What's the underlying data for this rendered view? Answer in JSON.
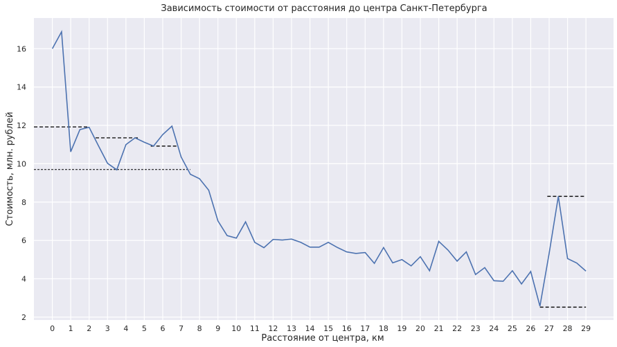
{
  "chart_data": {
    "type": "line",
    "title": "Зависимость стоимости от расстояния до центра Санкт-Петербурга",
    "xlabel": "Расстояние от центра, км",
    "ylabel": "Стоимость, млн. рублей",
    "xlim": [
      -1.0,
      30.5
    ],
    "ylim": [
      1.85,
      17.6
    ],
    "x_ticks": [
      0,
      1,
      2,
      3,
      4,
      5,
      6,
      7,
      8,
      9,
      10,
      11,
      12,
      13,
      14,
      15,
      16,
      17,
      18,
      19,
      20,
      21,
      22,
      23,
      24,
      25,
      26,
      27,
      28,
      29
    ],
    "y_ticks": [
      2,
      4,
      6,
      8,
      10,
      12,
      14,
      16
    ],
    "grid": true,
    "background": "#eaeaf2",
    "line_color": "#4c72b0",
    "series": [
      {
        "x": [
          0,
          0.5,
          1,
          1.5,
          2,
          2.5,
          3,
          3.5,
          4,
          4.5,
          5,
          5.5,
          6,
          6.5,
          7,
          7.5,
          8,
          8.5,
          9,
          9.5,
          10,
          10.5,
          11,
          11.5,
          12,
          12.5,
          13,
          13.5,
          14,
          14.5,
          15,
          15.5,
          16,
          16.5,
          17,
          17.5,
          18,
          18.5,
          19,
          19.5,
          20,
          20.5,
          21,
          21.5,
          22,
          22.5,
          23,
          23.5,
          24,
          24.5,
          25,
          25.5,
          26,
          26.5,
          27,
          27.5,
          28,
          28.5,
          29
        ],
        "values": [
          16.0,
          16.88,
          10.62,
          11.78,
          11.9,
          10.95,
          10.02,
          9.68,
          11.0,
          11.35,
          11.12,
          10.92,
          11.52,
          11.96,
          10.35,
          9.45,
          9.22,
          8.62,
          7.02,
          6.25,
          6.12,
          6.97,
          5.9,
          5.62,
          6.05,
          6.02,
          6.07,
          5.9,
          5.65,
          5.65,
          5.9,
          5.63,
          5.4,
          5.32,
          5.37,
          4.8,
          5.63,
          4.83,
          5.0,
          4.67,
          5.15,
          4.42,
          5.95,
          5.5,
          4.92,
          5.4,
          4.22,
          4.58,
          3.9,
          3.87,
          4.42,
          3.73,
          4.38,
          2.57,
          5.32,
          8.3,
          5.05,
          4.82,
          4.4
        ]
      }
    ],
    "reference_lines": [
      {
        "y": 11.92,
        "x_from": -1.0,
        "x_to": 2.0,
        "style": "dashed"
      },
      {
        "y": 11.35,
        "x_from": 2.35,
        "x_to": 4.7,
        "style": "dashed"
      },
      {
        "y": 10.92,
        "x_from": 5.35,
        "x_to": 6.8,
        "style": "dashed"
      },
      {
        "y": 9.7,
        "x_from": -1.0,
        "x_to": 7.5,
        "style": "dashed-fine"
      },
      {
        "y": 8.3,
        "x_from": 26.9,
        "x_to": 29.0,
        "style": "dashed"
      },
      {
        "y": 2.52,
        "x_from": 26.5,
        "x_to": 29.0,
        "style": "dashed"
      }
    ]
  }
}
